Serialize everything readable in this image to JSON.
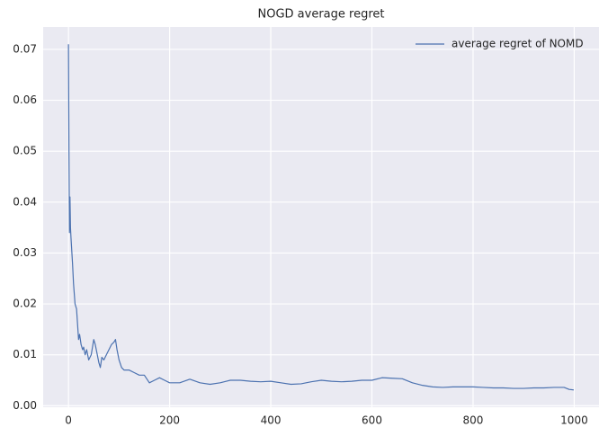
{
  "chart_data": {
    "type": "line",
    "title": "NOGD average regret",
    "x": [
      0,
      1,
      2,
      3,
      4,
      5,
      8,
      10,
      13,
      16,
      18,
      20,
      22,
      25,
      28,
      30,
      33,
      36,
      40,
      45,
      50,
      53,
      57,
      60,
      63,
      66,
      70,
      75,
      80,
      85,
      90,
      93,
      96,
      100,
      105,
      110,
      120,
      130,
      140,
      150,
      160,
      170,
      180,
      190,
      200,
      220,
      240,
      260,
      280,
      300,
      320,
      340,
      360,
      380,
      400,
      420,
      440,
      460,
      480,
      500,
      520,
      540,
      560,
      580,
      600,
      620,
      640,
      660,
      680,
      700,
      720,
      740,
      760,
      780,
      800,
      820,
      840,
      860,
      880,
      900,
      920,
      940,
      960,
      980,
      990,
      999
    ],
    "series": [
      {
        "name": "average regret of NOMD",
        "color": "#4c72b0",
        "values": [
          0.071,
          0.05,
          0.034,
          0.041,
          0.035,
          0.033,
          0.028,
          0.024,
          0.02,
          0.019,
          0.016,
          0.013,
          0.014,
          0.012,
          0.011,
          0.0115,
          0.01,
          0.011,
          0.009,
          0.01,
          0.013,
          0.012,
          0.01,
          0.0085,
          0.0075,
          0.0095,
          0.009,
          0.01,
          0.011,
          0.012,
          0.0125,
          0.013,
          0.011,
          0.009,
          0.0075,
          0.007,
          0.007,
          0.0065,
          0.006,
          0.006,
          0.0045,
          0.005,
          0.0055,
          0.005,
          0.0045,
          0.0045,
          0.0052,
          0.0045,
          0.0042,
          0.0045,
          0.005,
          0.005,
          0.0048,
          0.0047,
          0.0048,
          0.0045,
          0.0042,
          0.0043,
          0.0047,
          0.005,
          0.0048,
          0.0047,
          0.0048,
          0.005,
          0.005,
          0.0055,
          0.0054,
          0.0053,
          0.0045,
          0.004,
          0.0037,
          0.0036,
          0.0037,
          0.0037,
          0.0037,
          0.0036,
          0.0035,
          0.0035,
          0.0034,
          0.0034,
          0.0035,
          0.0035,
          0.0036,
          0.0036,
          0.0032,
          0.0031
        ]
      }
    ],
    "xlim": [
      -50,
      1049
    ],
    "xticks": [
      0,
      200,
      400,
      600,
      800,
      1000
    ],
    "ylim": [
      -0.0003,
      0.0744
    ],
    "yticks": [
      {
        "value": 0,
        "label": "0.00"
      },
      {
        "value": 0.01,
        "label": "0.01"
      },
      {
        "value": 0.02,
        "label": "0.02"
      },
      {
        "value": 0.03,
        "label": "0.03"
      },
      {
        "value": 0.04,
        "label": "0.04"
      },
      {
        "value": 0.05,
        "label": "0.05"
      },
      {
        "value": 0.06,
        "label": "0.06"
      },
      {
        "value": 0.07,
        "label": "0.07"
      }
    ],
    "grid": true,
    "legend": "upper right"
  }
}
